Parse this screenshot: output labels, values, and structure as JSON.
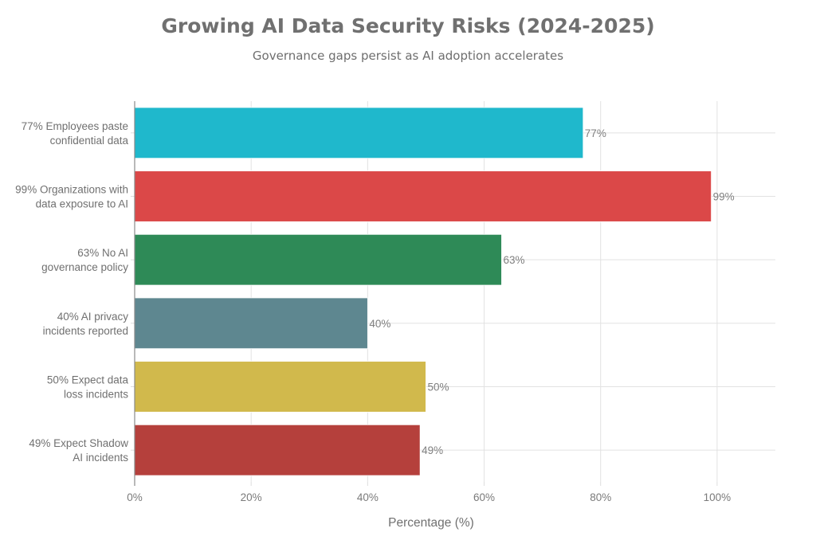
{
  "chart_data": {
    "type": "bar",
    "orientation": "horizontal",
    "title": "Growing AI Data Security Risks (2024-2025)",
    "subtitle": "Governance gaps persist as AI adoption accelerates",
    "xlabel": "Percentage (%)",
    "ylabel": "",
    "xlim": [
      0,
      110
    ],
    "xticks": [
      0,
      20,
      40,
      60,
      80,
      100
    ],
    "xtick_labels": [
      "0%",
      "20%",
      "40%",
      "60%",
      "80%",
      "100%"
    ],
    "grid": true,
    "legend": "none",
    "categories": [
      [
        "77% Employees paste",
        "confidential data"
      ],
      [
        "99% Organizations with",
        "data exposure to AI"
      ],
      [
        "63% No AI",
        "governance policy"
      ],
      [
        "40% AI privacy",
        "incidents reported"
      ],
      [
        "50% Expect data",
        "loss incidents"
      ],
      [
        "49% Expect Shadow",
        "AI incidents"
      ]
    ],
    "values": [
      77,
      99,
      63,
      40,
      50,
      49
    ],
    "data_labels": [
      "77%",
      "99%",
      "63%",
      "40%",
      "50%",
      "49%"
    ],
    "colors": [
      "#1fb8cc",
      "#db4848",
      "#2e8a57",
      "#5e8790",
      "#d1b94c",
      "#b5403c"
    ]
  }
}
